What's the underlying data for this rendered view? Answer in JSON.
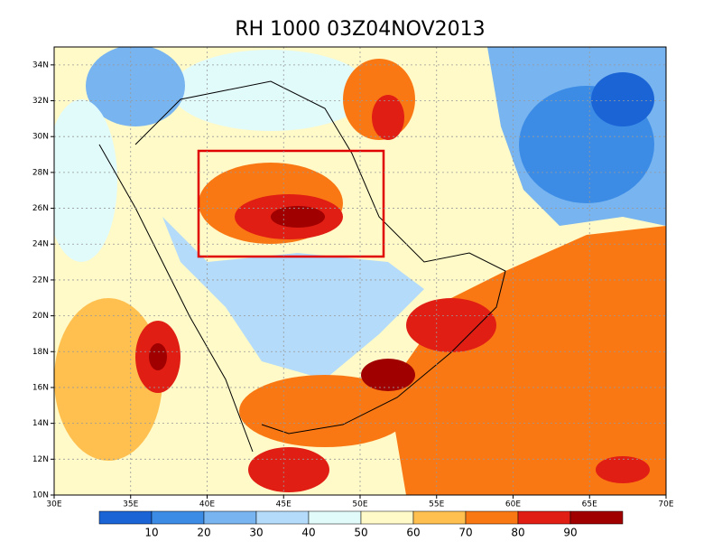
{
  "title": "RH 1000 03Z04NOV2013",
  "map": {
    "lon_range": [
      30,
      70
    ],
    "lat_range": [
      10,
      35
    ],
    "lon_ticks": [
      {
        "value": 30,
        "label": "30E"
      },
      {
        "value": 35,
        "label": "35E"
      },
      {
        "value": 40,
        "label": "40E"
      },
      {
        "value": 45,
        "label": "45E"
      },
      {
        "value": 50,
        "label": "50E"
      },
      {
        "value": 55,
        "label": "55E"
      },
      {
        "value": 60,
        "label": "60E"
      },
      {
        "value": 65,
        "label": "65E"
      },
      {
        "value": 70,
        "label": "70E"
      }
    ],
    "lat_ticks": [
      {
        "value": 10,
        "label": "10N"
      },
      {
        "value": 12,
        "label": "12N"
      },
      {
        "value": 14,
        "label": "14N"
      },
      {
        "value": 16,
        "label": "16N"
      },
      {
        "value": 18,
        "label": "18N"
      },
      {
        "value": 20,
        "label": "20N"
      },
      {
        "value": 22,
        "label": "22N"
      },
      {
        "value": 24,
        "label": "24N"
      },
      {
        "value": 26,
        "label": "26N"
      },
      {
        "value": 28,
        "label": "28N"
      },
      {
        "value": 30,
        "label": "30N"
      },
      {
        "value": 32,
        "label": "32N"
      },
      {
        "value": 34,
        "label": "34N"
      }
    ]
  },
  "colorbar": {
    "range": [
      0,
      100
    ],
    "labels": [
      10,
      20,
      30,
      40,
      50,
      60,
      70,
      80,
      90
    ],
    "colors": [
      "#1a64d6",
      "#3c8ce6",
      "#78b4f0",
      "#b4dcfa",
      "#e1fafa",
      "#fffac8",
      "#ffc050",
      "#fa7814",
      "#e01e14",
      "#a00000"
    ]
  }
}
